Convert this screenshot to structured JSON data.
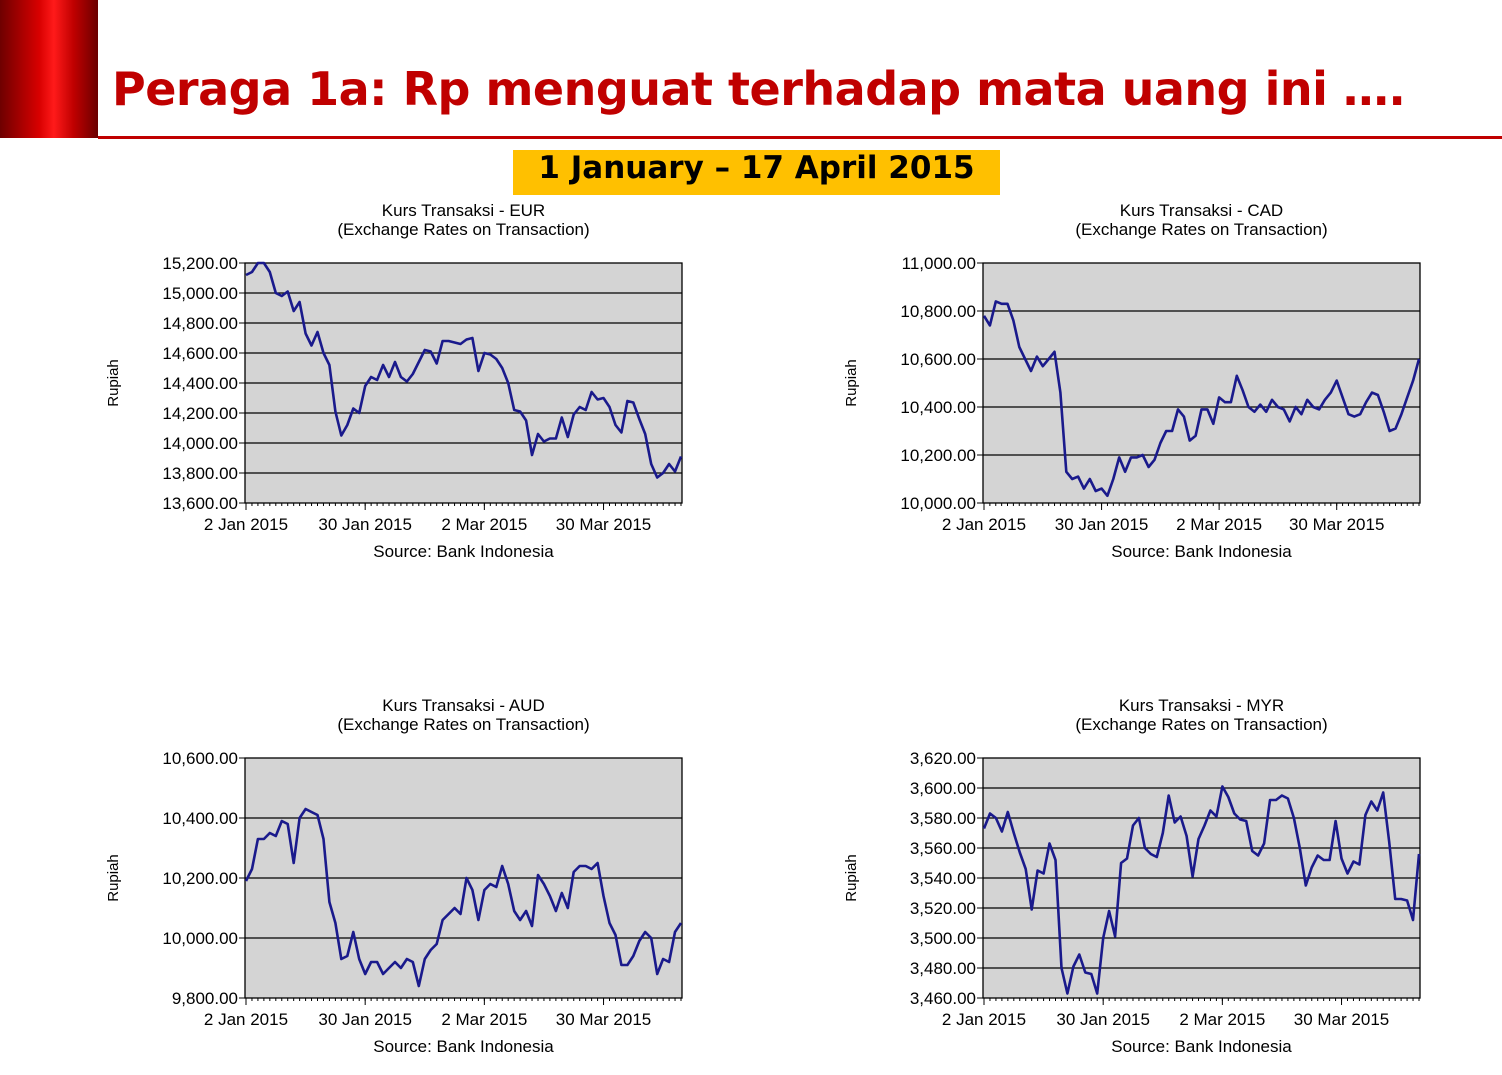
{
  "slide": {
    "title": "Peraga 1a: Rp menguat terhadap mata uang ini ….",
    "date_range": "1 January – 17 April 2015",
    "accent_color": "#c00000",
    "banner_color": "#ffc000"
  },
  "chart_style": {
    "line_color": "#1a1a8c",
    "plot_background": "#d4d4d4",
    "grid": true
  },
  "chart_data": [
    {
      "id": "eur",
      "type": "line",
      "title": "Kurs Transaksi - EUR",
      "subtitle": "(Exchange Rates on Transaction)",
      "ylabel": "Rupiah",
      "source": "Source: Bank Indonesia",
      "xlabels": [
        "2 Jan 2015",
        "30 Jan 2015",
        "2 Mar 2015",
        "30 Mar 2015"
      ],
      "yticks": [
        "15,200.00",
        "15,000.00",
        "14,800.00",
        "14,600.00",
        "14,400.00",
        "14,200.00",
        "14,000.00",
        "13,800.00",
        "13,600.00"
      ],
      "ylim": [
        13600,
        15200
      ],
      "series": [
        {
          "values": [
            15120,
            15140,
            15200,
            15200,
            15140,
            15000,
            14980,
            15010,
            14880,
            14940,
            14730,
            14650,
            14740,
            14600,
            14520,
            14210,
            14050,
            14120,
            14230,
            14200,
            14380,
            14440,
            14420,
            14520,
            14440,
            14540,
            14440,
            14410,
            14460,
            14540,
            14620,
            14610,
            14530,
            14680,
            14680,
            14670,
            14660,
            14690,
            14700,
            14480,
            14600,
            14590,
            14560,
            14500,
            14400,
            14220,
            14210,
            14150,
            13920,
            14060,
            14010,
            14030,
            14030,
            14170,
            14040,
            14190,
            14240,
            14220,
            14340,
            14290,
            14300,
            14240,
            14120,
            14070,
            14280,
            14270,
            14160,
            14060,
            13860,
            13770,
            13800,
            13860,
            13810,
            13910
          ]
        }
      ]
    },
    {
      "id": "cad",
      "type": "line",
      "title": "Kurs Transaksi - CAD",
      "subtitle": "(Exchange Rates on Transaction)",
      "ylabel": "Rupiah",
      "source": "Source: Bank Indonesia",
      "xlabels": [
        "2 Jan 2015",
        "30 Jan 2015",
        "2 Mar 2015",
        "30 Mar 2015"
      ],
      "yticks": [
        "11,000.00",
        "10,800.00",
        "10,600.00",
        "10,400.00",
        "10,200.00",
        "10,000.00"
      ],
      "ylim": [
        10000,
        11000
      ],
      "series": [
        {
          "values": [
            10780,
            10740,
            10840,
            10830,
            10830,
            10760,
            10650,
            10600,
            10550,
            10610,
            10570,
            10600,
            10630,
            10460,
            10130,
            10100,
            10110,
            10060,
            10100,
            10050,
            10060,
            10030,
            10100,
            10190,
            10130,
            10190,
            10190,
            10200,
            10150,
            10180,
            10250,
            10300,
            10300,
            10390,
            10360,
            10260,
            10280,
            10390,
            10390,
            10330,
            10440,
            10420,
            10420,
            10530,
            10470,
            10400,
            10380,
            10410,
            10380,
            10430,
            10400,
            10390,
            10340,
            10400,
            10370,
            10430,
            10400,
            10390,
            10430,
            10460,
            10510,
            10440,
            10370,
            10360,
            10370,
            10420,
            10460,
            10450,
            10380,
            10300,
            10310,
            10370,
            10440,
            10510,
            10600
          ]
        }
      ]
    },
    {
      "id": "aud",
      "type": "line",
      "title": "Kurs Transaksi - AUD",
      "subtitle": "(Exchange Rates on Transaction)",
      "ylabel": "Rupiah",
      "source": "Source: Bank Indonesia",
      "xlabels": [
        "2 Jan 2015",
        "30 Jan 2015",
        "2 Mar 2015",
        "30 Mar 2015"
      ],
      "yticks": [
        "10,600.00",
        "10,400.00",
        "10,200.00",
        "10,000.00",
        "9,800.00"
      ],
      "ylim": [
        9800,
        10600
      ],
      "series": [
        {
          "values": [
            10190,
            10230,
            10330,
            10330,
            10350,
            10340,
            10390,
            10380,
            10250,
            10400,
            10430,
            10420,
            10410,
            10330,
            10120,
            10050,
            9930,
            9940,
            10020,
            9930,
            9880,
            9920,
            9920,
            9880,
            9900,
            9920,
            9900,
            9930,
            9920,
            9840,
            9930,
            9960,
            9980,
            10060,
            10080,
            10100,
            10080,
            10200,
            10160,
            10060,
            10160,
            10180,
            10170,
            10240,
            10180,
            10090,
            10060,
            10090,
            10040,
            10210,
            10180,
            10140,
            10090,
            10150,
            10100,
            10220,
            10240,
            10240,
            10230,
            10250,
            10140,
            10050,
            10010,
            9910,
            9910,
            9940,
            9990,
            10020,
            10000,
            9880,
            9930,
            9920,
            10020,
            10050
          ]
        }
      ]
    },
    {
      "id": "myr",
      "type": "line",
      "title": "Kurs Transaksi - MYR",
      "subtitle": "(Exchange Rates on Transaction)",
      "ylabel": "Rupiah",
      "source": "Source: Bank Indonesia",
      "xlabels": [
        "2 Jan 2015",
        "30 Jan 2015",
        "2 Mar 2015",
        "30 Mar 2015"
      ],
      "yticks": [
        "3,620.00",
        "3,600.00",
        "3,580.00",
        "3,560.00",
        "3,540.00",
        "3,520.00",
        "3,500.00",
        "3,480.00",
        "3,460.00"
      ],
      "ylim": [
        3460,
        3620
      ],
      "series": [
        {
          "values": [
            3573,
            3583,
            3580,
            3571,
            3584,
            3570,
            3557,
            3546,
            3519,
            3545,
            3543,
            3563,
            3552,
            3480,
            3463,
            3481,
            3489,
            3477,
            3476,
            3463,
            3500,
            3518,
            3501,
            3550,
            3553,
            3575,
            3580,
            3560,
            3556,
            3554,
            3570,
            3595,
            3577,
            3581,
            3568,
            3541,
            3566,
            3575,
            3585,
            3581,
            3601,
            3594,
            3583,
            3579,
            3578,
            3558,
            3555,
            3563,
            3592,
            3592,
            3595,
            3593,
            3580,
            3560,
            3535,
            3547,
            3555,
            3552,
            3552,
            3578,
            3553,
            3543,
            3551,
            3549,
            3582,
            3591,
            3585,
            3597,
            3564,
            3526,
            3526,
            3525,
            3512,
            3556
          ]
        }
      ]
    }
  ]
}
